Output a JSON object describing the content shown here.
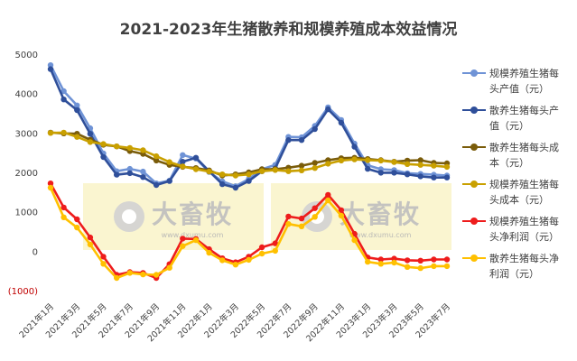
{
  "chart_data": {
    "type": "line",
    "title": "2021-2023年生猪散养和规模养殖成本效益情况",
    "xlabel": "",
    "ylabel": "",
    "ylim": [
      -1000,
      5000
    ],
    "yticks": [
      "5000",
      "4000",
      "3000",
      "2000",
      "1000",
      "0",
      "(1000)"
    ],
    "ytick_values": [
      5000,
      4000,
      3000,
      2000,
      1000,
      0,
      -1000
    ],
    "x": [
      "2021-01",
      "2021-02",
      "2021-03",
      "2021-04",
      "2021-05",
      "2021-06",
      "2021-07",
      "2021-08",
      "2021-09",
      "2021-10",
      "2021-11",
      "2021-12",
      "2022-01",
      "2022-02",
      "2022-03",
      "2022-04",
      "2022-05",
      "2022-06",
      "2022-07",
      "2022-08",
      "2022-09",
      "2022-10",
      "2022-11",
      "2022-12",
      "2023-01",
      "2023-02",
      "2023-03",
      "2023-04",
      "2023-05",
      "2023-06",
      "2023-07"
    ],
    "xtick_labels": [
      {
        "index": 0,
        "label": "2021年1月"
      },
      {
        "index": 2,
        "label": "2021年3月"
      },
      {
        "index": 4,
        "label": "2021年5月"
      },
      {
        "index": 6,
        "label": "2021年7月"
      },
      {
        "index": 8,
        "label": "2021年9月"
      },
      {
        "index": 10,
        "label": "2021年11月"
      },
      {
        "index": 12,
        "label": "2022年1月"
      },
      {
        "index": 14,
        "label": "2022年3月"
      },
      {
        "index": 16,
        "label": "2022年5月"
      },
      {
        "index": 18,
        "label": "2022年7月"
      },
      {
        "index": 20,
        "label": "2022年9月"
      },
      {
        "index": 22,
        "label": "2022年11月"
      },
      {
        "index": 24,
        "label": "2023年1月"
      },
      {
        "index": 26,
        "label": "2023年3月"
      },
      {
        "index": 28,
        "label": "2023年5月"
      },
      {
        "index": 30,
        "label": "2023年7月"
      }
    ],
    "grid": false,
    "legend": "right",
    "series": [
      {
        "name": "规模养殖生猪每头产值（元）",
        "legend_lines": [
          "规模养殖生猪每",
          "头产值（元）"
        ],
        "color": "#6f93d6",
        "values": [
          4720,
          4060,
          3700,
          3120,
          2480,
          2030,
          2090,
          2020,
          1720,
          1790,
          2440,
          2350,
          2010,
          1770,
          1650,
          1830,
          2080,
          2190,
          2900,
          2890,
          3180,
          3650,
          3330,
          2730,
          2180,
          2080,
          2060,
          1980,
          1960,
          1940,
          1920
        ]
      },
      {
        "name": "散养生猪每头产值（元）",
        "legend_lines": [
          "散养生猪每头产",
          "值（元）"
        ],
        "color": "#2f4f9a",
        "values": [
          4620,
          3850,
          3580,
          2980,
          2390,
          1940,
          1980,
          1880,
          1680,
          1780,
          2270,
          2370,
          2030,
          1700,
          1610,
          1780,
          2030,
          2100,
          2820,
          2820,
          3100,
          3600,
          3260,
          2650,
          2090,
          1990,
          1990,
          1950,
          1900,
          1870,
          1870
        ]
      },
      {
        "name": "散养生猪每头成本（元）",
        "legend_lines": [
          "散养生猪每头成",
          "本（元）"
        ],
        "color": "#7a5c0a",
        "values": [
          3010,
          2990,
          2980,
          2830,
          2700,
          2660,
          2540,
          2470,
          2300,
          2190,
          2140,
          2110,
          2050,
          1920,
          1950,
          2000,
          2080,
          2080,
          2120,
          2170,
          2240,
          2310,
          2360,
          2370,
          2340,
          2310,
          2270,
          2300,
          2310,
          2240,
          2230
        ]
      },
      {
        "name": "规模养殖生猪每头成本（元）",
        "legend_lines": [
          "规模养殖生猪每",
          "头成本（元）"
        ],
        "color": "#c9a000",
        "values": [
          3000,
          3010,
          2900,
          2770,
          2720,
          2660,
          2620,
          2560,
          2410,
          2260,
          2150,
          2080,
          2020,
          1950,
          1920,
          1950,
          2030,
          2060,
          2030,
          2050,
          2110,
          2220,
          2300,
          2330,
          2310,
          2300,
          2260,
          2210,
          2190,
          2170,
          2140
        ]
      },
      {
        "name": "规模养殖生猪每头净利润（元）",
        "legend_lines": [
          "规模养殖生猪每",
          "头净利润（元）"
        ],
        "color": "#ee1c1c",
        "values": [
          1720,
          1110,
          810,
          350,
          -140,
          -600,
          -530,
          -550,
          -680,
          -330,
          320,
          310,
          50,
          -180,
          -280,
          -140,
          100,
          200,
          880,
          830,
          1090,
          1430,
          1040,
          440,
          -160,
          -210,
          -190,
          -230,
          -240,
          -210,
          -210
        ]
      },
      {
        "name": "散养生猪每头净利润（元）",
        "legend_lines": [
          "散养生猪每头净",
          "利润（元）"
        ],
        "color": "#ffc000",
        "values": [
          1610,
          860,
          600,
          170,
          -320,
          -680,
          -550,
          -590,
          -600,
          -420,
          130,
          280,
          -40,
          -230,
          -340,
          -220,
          -60,
          10,
          690,
          630,
          870,
          1290,
          900,
          280,
          -270,
          -320,
          -290,
          -400,
          -430,
          -380,
          -380
        ]
      }
    ],
    "watermark": {
      "text": "大畜牧",
      "url": "www.dxumu.com"
    }
  }
}
